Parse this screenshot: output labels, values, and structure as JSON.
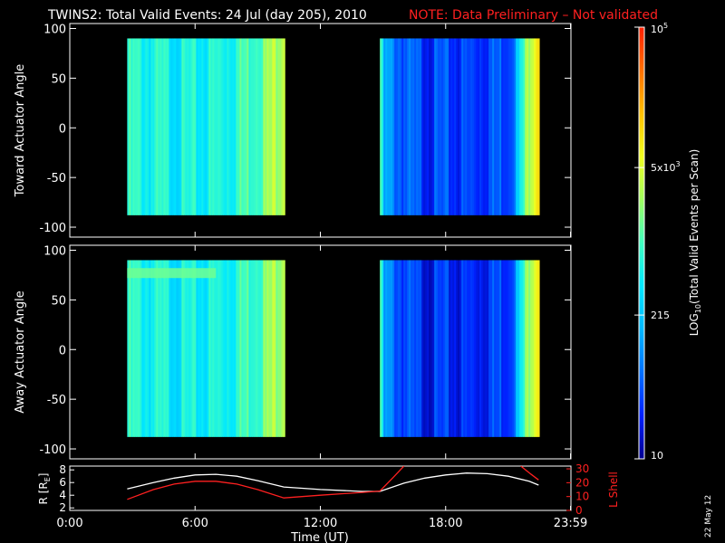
{
  "header": {
    "title": "TWINS2: Total Valid Events: 24 Jul (day 205), 2010",
    "note": "NOTE: Data Preliminary – Not validated",
    "note_color": "#ff2020"
  },
  "side_label": "22 May 12",
  "colorbar": {
    "label": "LOG10(Total Valid Events per Scan)",
    "label_main": "LOG",
    "label_sub": "10",
    "label_rest": "(Total Valid Events per Scan)",
    "ticks": [
      {
        "value": 100000,
        "base": "10",
        "exp": "5"
      },
      {
        "value": 5000,
        "base": "5x10",
        "exp": "3"
      },
      {
        "value": 215,
        "base": "215",
        "exp": ""
      },
      {
        "value": 10,
        "base": "10",
        "exp": ""
      }
    ],
    "range": [
      10,
      100000
    ],
    "colors": [
      "#000090",
      "#0020ff",
      "#0070ff",
      "#00b8ff",
      "#00e8ff",
      "#40ffc0",
      "#a0ff60",
      "#f0ff20",
      "#ffc000",
      "#ff7000",
      "#ff2000"
    ]
  },
  "chart_data": [
    {
      "type": "heatmap",
      "ylabel": "Toward Actuator Angle",
      "y_ticks": [
        "100",
        "50",
        "0",
        "-50",
        "-100"
      ],
      "ylim": [
        -110,
        105
      ],
      "xlim": [
        0,
        24
      ],
      "grid": false,
      "coverage": [
        {
          "x": [
            2.75,
            10.25
          ],
          "y": [
            -88,
            90
          ]
        },
        {
          "x": [
            14.85,
            22.45
          ],
          "y": [
            -88,
            90
          ]
        }
      ],
      "time_levels": [
        {
          "x": 2.75,
          "level": 0.5
        },
        {
          "x": 4.0,
          "level": 0.48
        },
        {
          "x": 6.0,
          "level": 0.46
        },
        {
          "x": 8.0,
          "level": 0.52
        },
        {
          "x": 9.5,
          "level": 0.62
        },
        {
          "x": 10.25,
          "level": 0.74
        },
        {
          "x": 14.85,
          "level": 0.55
        },
        {
          "x": 15.0,
          "level": 0.3
        },
        {
          "x": 16.5,
          "level": 0.18
        },
        {
          "x": 19.0,
          "level": 0.17
        },
        {
          "x": 21.0,
          "level": 0.22
        },
        {
          "x": 21.5,
          "level": 0.4
        },
        {
          "x": 22.0,
          "level": 0.72
        },
        {
          "x": 22.45,
          "level": 0.86
        }
      ]
    },
    {
      "type": "heatmap",
      "ylabel": "Away Actuator Angle",
      "y_ticks": [
        "100",
        "50",
        "0",
        "-50",
        "-100"
      ],
      "ylim": [
        -110,
        105
      ],
      "xlim": [
        0,
        24
      ],
      "grid": false,
      "coverage": [
        {
          "x": [
            2.75,
            10.25
          ],
          "y": [
            -88,
            90
          ]
        },
        {
          "x": [
            14.85,
            22.45
          ],
          "y": [
            -88,
            90
          ]
        }
      ],
      "time_levels": [
        {
          "x": 2.75,
          "level": 0.5
        },
        {
          "x": 4.0,
          "level": 0.47
        },
        {
          "x": 6.0,
          "level": 0.45
        },
        {
          "x": 8.0,
          "level": 0.51
        },
        {
          "x": 9.5,
          "level": 0.61
        },
        {
          "x": 10.25,
          "level": 0.72
        },
        {
          "x": 14.85,
          "level": 0.55
        },
        {
          "x": 15.0,
          "level": 0.28
        },
        {
          "x": 16.5,
          "level": 0.15
        },
        {
          "x": 19.0,
          "level": 0.14
        },
        {
          "x": 21.0,
          "level": 0.2
        },
        {
          "x": 21.5,
          "level": 0.38
        },
        {
          "x": 22.0,
          "level": 0.7
        },
        {
          "x": 22.45,
          "level": 0.84
        }
      ],
      "band": {
        "x": [
          2.75,
          7.0
        ],
        "y": [
          72,
          82
        ],
        "level": 0.55
      }
    },
    {
      "type": "line",
      "xlabel": "Time (UT)",
      "x_ticks": [
        {
          "x": 0,
          "label": "0:00"
        },
        {
          "x": 6,
          "label": "6:00"
        },
        {
          "x": 12,
          "label": "12:00"
        },
        {
          "x": 18,
          "label": "18:00"
        },
        {
          "x": 23.98,
          "label": "23:59"
        }
      ],
      "xlim": [
        0,
        24
      ],
      "y_left": {
        "label": "R [RE]",
        "label_main": "R [R",
        "label_sub": "E",
        "ticks": [
          "8",
          "6",
          "4",
          "2"
        ],
        "ylim": [
          1.6,
          8.6
        ],
        "color": "#ffffff"
      },
      "y_right": {
        "label": "L Shell",
        "ticks": [
          "30",
          "20",
          "10",
          "0"
        ],
        "ylim": [
          0,
          32
        ],
        "color": "#ff2020"
      },
      "series": [
        {
          "axis": "left",
          "color": "#ffffff",
          "x": [
            2.75,
            4,
            5,
            6,
            7,
            8,
            9,
            10.25,
            12,
            14,
            14.85,
            16,
            17,
            18,
            19,
            20,
            21,
            22,
            22.45
          ],
          "y": [
            5.0,
            6.0,
            6.7,
            7.2,
            7.3,
            7.0,
            6.3,
            5.3,
            4.9,
            4.6,
            4.6,
            5.9,
            6.7,
            7.2,
            7.5,
            7.4,
            7.0,
            6.2,
            5.6
          ]
        },
        {
          "axis": "right",
          "color": "#ff2020",
          "x": [
            2.75,
            4,
            5,
            6,
            7,
            8,
            9,
            10.25,
            12,
            14,
            14.85,
            15.5,
            16.0
          ],
          "y": [
            8,
            15,
            19,
            21,
            21,
            19,
            15,
            9,
            11,
            13,
            14,
            24,
            32
          ]
        },
        {
          "axis": "right",
          "color": "#ff2020",
          "x": [
            21.6,
            22.1,
            22.45
          ],
          "y": [
            32,
            26,
            22
          ]
        }
      ]
    }
  ]
}
